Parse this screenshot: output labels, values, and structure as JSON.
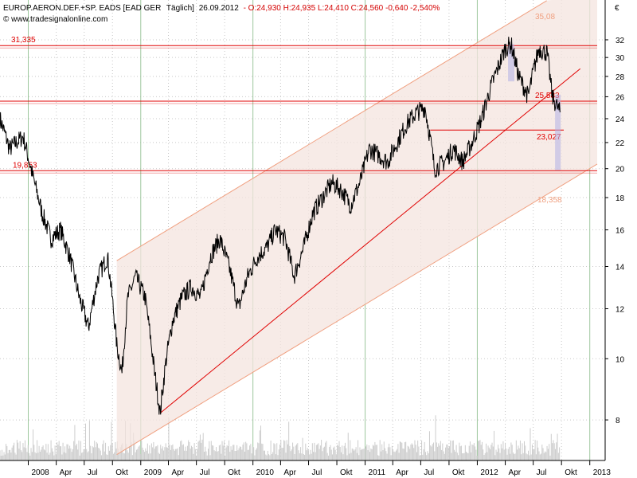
{
  "header": {
    "name": "EUROP.AERON.DEF.+SP. EADS [EAD GER",
    "freq": "Täglich]",
    "date": "26.09.2012",
    "ohlc": "- O:24,930 H:24,935 L:24,410 C:24,560 -0,640 -2,540%",
    "source": "© www.tradesignalonline.com",
    "currency": "€"
  },
  "chart_data": {
    "type": "line",
    "yscale": "log",
    "ylim": [
      6.9,
      37
    ],
    "y_ticks": [
      8,
      10,
      12,
      14,
      16,
      18,
      20,
      22,
      24,
      26,
      28,
      30,
      32
    ],
    "year_labels": [
      "2008",
      "2009",
      "2010",
      "2011",
      "2012",
      "2013"
    ],
    "month_labels": [
      "Apr",
      "Jul",
      "Okt"
    ],
    "horizontal_levels": [
      {
        "value": 31.335,
        "label": "31,335"
      },
      {
        "value": 25.583,
        "label": "25,583"
      },
      {
        "value": 19.853,
        "label": "19,853"
      }
    ],
    "segment_level": {
      "value": 23.027,
      "label": "23,027"
    },
    "channel_labels": {
      "upper": "35,08",
      "lower": "18,358"
    },
    "price_path": [
      [
        "2007-10-01",
        24.0
      ],
      [
        "2007-11-01",
        21.5
      ],
      [
        "2007-12-15",
        22.5
      ],
      [
        "2008-01-15",
        19.5
      ],
      [
        "2008-02-15",
        17.0
      ],
      [
        "2008-03-15",
        15.5
      ],
      [
        "2008-04-15",
        16.0
      ],
      [
        "2008-05-15",
        14.5
      ],
      [
        "2008-06-15",
        12.5
      ],
      [
        "2008-07-15",
        11.2
      ],
      [
        "2008-08-15",
        13.5
      ],
      [
        "2008-09-15",
        14.5
      ],
      [
        "2008-10-15",
        10.5
      ],
      [
        "2008-11-01",
        9.5
      ],
      [
        "2008-11-20",
        12.5
      ],
      [
        "2008-12-15",
        13.5
      ],
      [
        "2009-01-15",
        12.5
      ],
      [
        "2009-02-15",
        9.5
      ],
      [
        "2009-03-05",
        8.2
      ],
      [
        "2009-03-25",
        10.0
      ],
      [
        "2009-04-15",
        11.5
      ],
      [
        "2009-05-15",
        12.5
      ],
      [
        "2009-06-15",
        13.0
      ],
      [
        "2009-07-15",
        12.5
      ],
      [
        "2009-08-15",
        14.5
      ],
      [
        "2009-09-15",
        15.5
      ],
      [
        "2009-10-15",
        14.0
      ],
      [
        "2009-11-15",
        12.0
      ],
      [
        "2009-12-15",
        13.5
      ],
      [
        "2010-01-15",
        14.5
      ],
      [
        "2010-02-15",
        15.0
      ],
      [
        "2010-03-15",
        16.0
      ],
      [
        "2010-04-15",
        15.5
      ],
      [
        "2010-05-15",
        13.5
      ],
      [
        "2010-06-15",
        15.0
      ],
      [
        "2010-07-15",
        17.0
      ],
      [
        "2010-08-15",
        18.0
      ],
      [
        "2010-09-15",
        19.0
      ],
      [
        "2010-10-15",
        18.5
      ],
      [
        "2010-11-15",
        17.5
      ],
      [
        "2010-12-15",
        19.0
      ],
      [
        "2011-01-15",
        21.5
      ],
      [
        "2011-02-15",
        21.0
      ],
      [
        "2011-03-15",
        20.5
      ],
      [
        "2011-04-15",
        22.0
      ],
      [
        "2011-05-15",
        23.5
      ],
      [
        "2011-06-15",
        24.5
      ],
      [
        "2011-07-15",
        25.0
      ],
      [
        "2011-08-15",
        20.0
      ],
      [
        "2011-09-15",
        20.5
      ],
      [
        "2011-10-15",
        21.5
      ],
      [
        "2011-11-15",
        20.5
      ],
      [
        "2011-12-15",
        22.0
      ],
      [
        "2012-01-15",
        24.0
      ],
      [
        "2012-02-15",
        27.0
      ],
      [
        "2012-03-15",
        29.5
      ],
      [
        "2012-04-01",
        31.0
      ],
      [
        "2012-04-20",
        31.5
      ],
      [
        "2012-05-15",
        28.0
      ],
      [
        "2012-06-15",
        26.0
      ],
      [
        "2012-07-01",
        28.5
      ],
      [
        "2012-07-20",
        31.0
      ],
      [
        "2012-08-15",
        30.5
      ],
      [
        "2012-09-01",
        26.0
      ],
      [
        "2012-09-26",
        24.56
      ]
    ]
  }
}
